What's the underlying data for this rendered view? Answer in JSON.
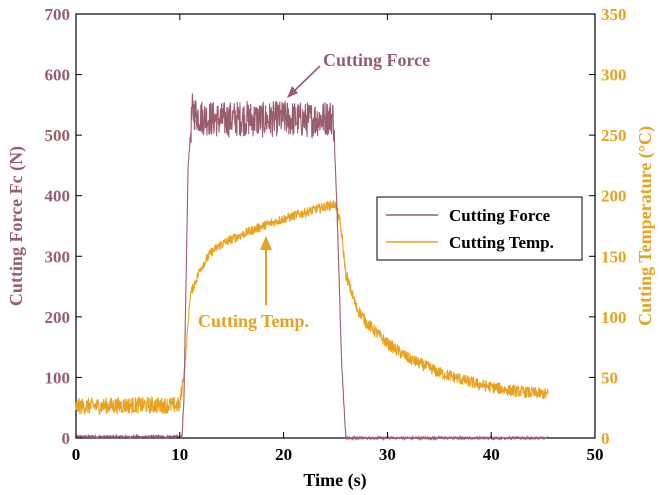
{
  "chart_data": {
    "type": "line",
    "xlabel": "Time (s)",
    "ylabel_left": "Cutting Force Fc (N)",
    "ylabel_right": "Cutting Temperature (°C)",
    "xlim": [
      0,
      50
    ],
    "ylim_left": [
      0,
      700
    ],
    "ylim_right": [
      0,
      350
    ],
    "xticks": [
      "0",
      "10",
      "20",
      "30",
      "40",
      "50"
    ],
    "yticks_left": [
      "0",
      "100",
      "200",
      "300",
      "400",
      "500",
      "600",
      "700"
    ],
    "yticks_right": [
      "0",
      "50",
      "100",
      "150",
      "200",
      "250",
      "300",
      "350"
    ],
    "grid": false,
    "legend_position": "right-middle",
    "colors": {
      "force": "#9a5d6b",
      "temp": "#e8a21f",
      "axis_left": "#9a5d6b",
      "axis_right": "#e8a21f"
    },
    "series": [
      {
        "name": "Cutting Force",
        "axis": "left",
        "x": [
          0,
          10.2,
          10.4,
          10.8,
          11.2,
          12,
          14,
          16,
          18,
          20,
          22,
          24,
          24.8,
          25.2,
          25.6,
          26,
          30,
          35,
          40,
          45.5
        ],
        "y": [
          2,
          2,
          60,
          450,
          540,
          530,
          525,
          528,
          525,
          528,
          525,
          528,
          530,
          350,
          120,
          0,
          0,
          0,
          0,
          0
        ]
      },
      {
        "name": "Cutting Temp.",
        "axis": "right",
        "x": [
          0,
          5,
          10,
          10.5,
          11,
          12,
          13,
          14,
          16,
          18,
          20,
          22,
          24,
          25,
          25.5,
          26,
          27,
          28,
          30,
          32,
          35,
          38,
          40,
          42,
          45.5
        ],
        "y": [
          26,
          27,
          27,
          60,
          118,
          140,
          153,
          160,
          168,
          175,
          181,
          186,
          191,
          193,
          175,
          135,
          108,
          95,
          78,
          66,
          54,
          46,
          42,
          39,
          36
        ]
      }
    ],
    "annotations": [
      {
        "text": "Cutting Force",
        "series": "Cutting Force",
        "x": 21,
        "y": 545,
        "axis": "left"
      },
      {
        "text": "Cutting Temp.",
        "series": "Cutting Temp.",
        "x": 18,
        "y": 176,
        "axis": "right"
      }
    ]
  }
}
